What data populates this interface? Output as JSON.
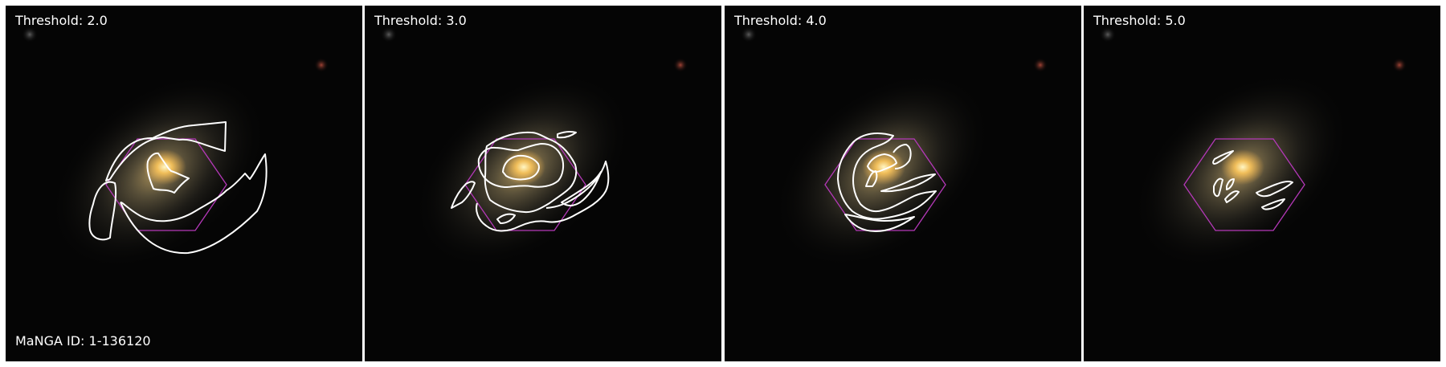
{
  "figure": {
    "panels": [
      {
        "threshold_label": "Threshold: 2.0"
      },
      {
        "threshold_label": "Threshold: 3.0"
      },
      {
        "threshold_label": "Threshold: 4.0"
      },
      {
        "threshold_label": "Threshold: 5.0"
      }
    ],
    "manga_id_label": "MaNGA ID: 1-136120"
  },
  "colors": {
    "background": "#050505",
    "contour": "#ffffff",
    "hexagon": "#b438b8",
    "galaxy_core": "#ffd36a",
    "galaxy_halo": "#8d835e"
  }
}
